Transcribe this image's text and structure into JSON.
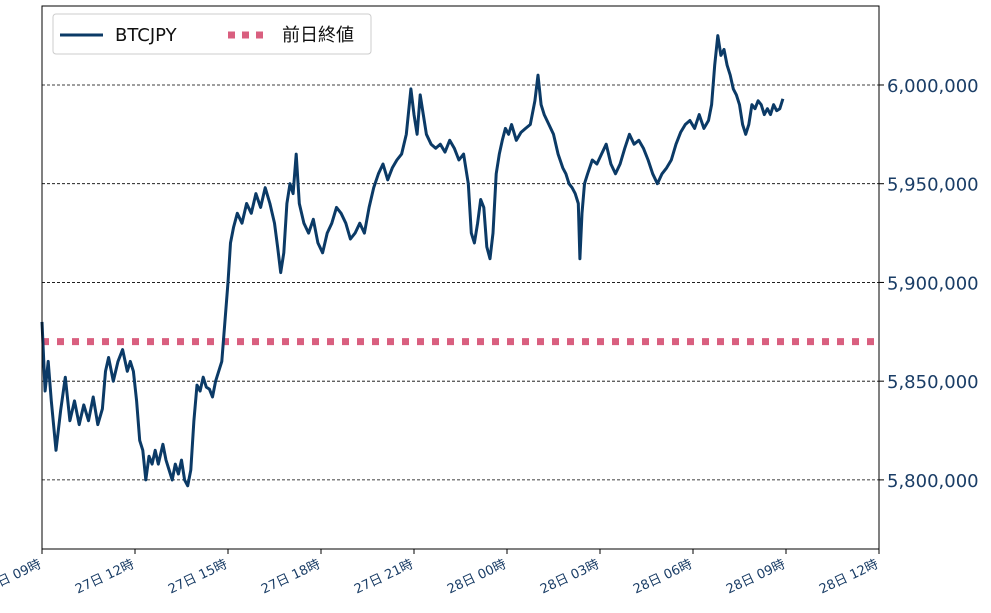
{
  "chart_data": {
    "type": "line",
    "title": "",
    "xlabel": "",
    "ylabel": "",
    "ylim": [
      5765000,
      6040000
    ],
    "grid": {
      "horizontal": true,
      "vertical": false,
      "style": "dashed"
    },
    "legend_position": "top-left",
    "x_hours_range": [
      0,
      27
    ],
    "x_ticks": [
      {
        "hour": 0,
        "label": "27日 09時"
      },
      {
        "hour": 3,
        "label": "27日 12時"
      },
      {
        "hour": 6,
        "label": "27日 15時"
      },
      {
        "hour": 9,
        "label": "27日 18時"
      },
      {
        "hour": 12,
        "label": "27日 21時"
      },
      {
        "hour": 15,
        "label": "28日 00時"
      },
      {
        "hour": 18,
        "label": "28日 03時"
      },
      {
        "hour": 21,
        "label": "28日 06時"
      },
      {
        "hour": 24,
        "label": "28日 09時"
      },
      {
        "hour": 27,
        "label": "28日 12時"
      }
    ],
    "y_ticks": [
      {
        "value": 5800000,
        "label": "5,800,000"
      },
      {
        "value": 5850000,
        "label": "5,850,000"
      },
      {
        "value": 5900000,
        "label": "5,900,000"
      },
      {
        "value": 5950000,
        "label": "5,950,000"
      },
      {
        "value": 6000000,
        "label": "6,000,000"
      }
    ],
    "series": [
      {
        "name": "BTCJPY",
        "color": "#0b3a66",
        "style": "solid",
        "points": [
          [
            0.0,
            5880000
          ],
          [
            0.1,
            5845000
          ],
          [
            0.2,
            5860000
          ],
          [
            0.3,
            5840000
          ],
          [
            0.45,
            5815000
          ],
          [
            0.6,
            5835000
          ],
          [
            0.75,
            5852000
          ],
          [
            0.9,
            5830000
          ],
          [
            1.05,
            5840000
          ],
          [
            1.2,
            5828000
          ],
          [
            1.35,
            5838000
          ],
          [
            1.5,
            5830000
          ],
          [
            1.65,
            5842000
          ],
          [
            1.8,
            5828000
          ],
          [
            1.95,
            5836000
          ],
          [
            2.05,
            5855000
          ],
          [
            2.15,
            5862000
          ],
          [
            2.3,
            5850000
          ],
          [
            2.45,
            5860000
          ],
          [
            2.6,
            5866000
          ],
          [
            2.75,
            5855000
          ],
          [
            2.85,
            5860000
          ],
          [
            2.95,
            5855000
          ],
          [
            3.05,
            5840000
          ],
          [
            3.15,
            5820000
          ],
          [
            3.25,
            5815000
          ],
          [
            3.35,
            5800000
          ],
          [
            3.45,
            5812000
          ],
          [
            3.55,
            5808000
          ],
          [
            3.65,
            5815000
          ],
          [
            3.75,
            5808000
          ],
          [
            3.9,
            5818000
          ],
          [
            4.0,
            5810000
          ],
          [
            4.1,
            5805000
          ],
          [
            4.2,
            5800000
          ],
          [
            4.3,
            5808000
          ],
          [
            4.4,
            5803000
          ],
          [
            4.5,
            5810000
          ],
          [
            4.6,
            5800000
          ],
          [
            4.7,
            5797000
          ],
          [
            4.8,
            5805000
          ],
          [
            4.9,
            5830000
          ],
          [
            5.0,
            5848000
          ],
          [
            5.1,
            5845000
          ],
          [
            5.2,
            5852000
          ],
          [
            5.3,
            5847000
          ],
          [
            5.4,
            5846000
          ],
          [
            5.5,
            5842000
          ],
          [
            5.6,
            5850000
          ],
          [
            5.7,
            5855000
          ],
          [
            5.8,
            5860000
          ],
          [
            5.9,
            5880000
          ],
          [
            6.0,
            5900000
          ],
          [
            6.08,
            5920000
          ],
          [
            6.18,
            5928000
          ],
          [
            6.3,
            5935000
          ],
          [
            6.45,
            5930000
          ],
          [
            6.6,
            5940000
          ],
          [
            6.75,
            5935000
          ],
          [
            6.9,
            5945000
          ],
          [
            7.05,
            5938000
          ],
          [
            7.2,
            5948000
          ],
          [
            7.35,
            5940000
          ],
          [
            7.5,
            5930000
          ],
          [
            7.6,
            5918000
          ],
          [
            7.7,
            5905000
          ],
          [
            7.8,
            5915000
          ],
          [
            7.9,
            5940000
          ],
          [
            8.0,
            5950000
          ],
          [
            8.1,
            5945000
          ],
          [
            8.2,
            5965000
          ],
          [
            8.3,
            5940000
          ],
          [
            8.45,
            5930000
          ],
          [
            8.6,
            5925000
          ],
          [
            8.75,
            5932000
          ],
          [
            8.9,
            5920000
          ],
          [
            9.05,
            5915000
          ],
          [
            9.2,
            5925000
          ],
          [
            9.35,
            5930000
          ],
          [
            9.5,
            5938000
          ],
          [
            9.65,
            5935000
          ],
          [
            9.8,
            5930000
          ],
          [
            9.95,
            5922000
          ],
          [
            10.1,
            5925000
          ],
          [
            10.25,
            5930000
          ],
          [
            10.4,
            5925000
          ],
          [
            10.55,
            5938000
          ],
          [
            10.7,
            5948000
          ],
          [
            10.85,
            5955000
          ],
          [
            11.0,
            5960000
          ],
          [
            11.15,
            5952000
          ],
          [
            11.3,
            5958000
          ],
          [
            11.45,
            5962000
          ],
          [
            11.6,
            5965000
          ],
          [
            11.75,
            5975000
          ],
          [
            11.9,
            5998000
          ],
          [
            12.0,
            5985000
          ],
          [
            12.1,
            5975000
          ],
          [
            12.2,
            5995000
          ],
          [
            12.3,
            5985000
          ],
          [
            12.4,
            5975000
          ],
          [
            12.55,
            5970000
          ],
          [
            12.7,
            5968000
          ],
          [
            12.85,
            5970000
          ],
          [
            13.0,
            5966000
          ],
          [
            13.15,
            5972000
          ],
          [
            13.3,
            5968000
          ],
          [
            13.45,
            5962000
          ],
          [
            13.6,
            5965000
          ],
          [
            13.75,
            5950000
          ],
          [
            13.85,
            5925000
          ],
          [
            13.95,
            5920000
          ],
          [
            14.05,
            5930000
          ],
          [
            14.15,
            5942000
          ],
          [
            14.25,
            5938000
          ],
          [
            14.35,
            5918000
          ],
          [
            14.45,
            5912000
          ],
          [
            14.55,
            5925000
          ],
          [
            14.65,
            5955000
          ],
          [
            14.75,
            5965000
          ],
          [
            14.85,
            5972000
          ],
          [
            14.95,
            5978000
          ],
          [
            15.05,
            5975000
          ],
          [
            15.15,
            5980000
          ],
          [
            15.3,
            5972000
          ],
          [
            15.45,
            5976000
          ],
          [
            15.6,
            5978000
          ],
          [
            15.75,
            5980000
          ],
          [
            15.9,
            5992000
          ],
          [
            16.0,
            6005000
          ],
          [
            16.1,
            5990000
          ],
          [
            16.2,
            5985000
          ],
          [
            16.35,
            5980000
          ],
          [
            16.5,
            5975000
          ],
          [
            16.65,
            5965000
          ],
          [
            16.8,
            5958000
          ],
          [
            16.9,
            5955000
          ],
          [
            17.0,
            5950000
          ],
          [
            17.1,
            5948000
          ],
          [
            17.2,
            5945000
          ],
          [
            17.3,
            5940000
          ],
          [
            17.35,
            5912000
          ],
          [
            17.42,
            5935000
          ],
          [
            17.5,
            5950000
          ],
          [
            17.6,
            5955000
          ],
          [
            17.75,
            5962000
          ],
          [
            17.9,
            5960000
          ],
          [
            18.05,
            5965000
          ],
          [
            18.2,
            5970000
          ],
          [
            18.35,
            5960000
          ],
          [
            18.5,
            5955000
          ],
          [
            18.65,
            5960000
          ],
          [
            18.8,
            5968000
          ],
          [
            18.95,
            5975000
          ],
          [
            19.1,
            5970000
          ],
          [
            19.25,
            5972000
          ],
          [
            19.4,
            5968000
          ],
          [
            19.55,
            5962000
          ],
          [
            19.7,
            5955000
          ],
          [
            19.85,
            5950000
          ],
          [
            20.0,
            5955000
          ],
          [
            20.15,
            5958000
          ],
          [
            20.3,
            5962000
          ],
          [
            20.45,
            5970000
          ],
          [
            20.6,
            5976000
          ],
          [
            20.75,
            5980000
          ],
          [
            20.9,
            5982000
          ],
          [
            21.05,
            5978000
          ],
          [
            21.2,
            5985000
          ],
          [
            21.35,
            5978000
          ],
          [
            21.5,
            5982000
          ],
          [
            21.6,
            5990000
          ],
          [
            21.7,
            6010000
          ],
          [
            21.8,
            6025000
          ],
          [
            21.9,
            6015000
          ],
          [
            22.0,
            6018000
          ],
          [
            22.1,
            6010000
          ],
          [
            22.2,
            6005000
          ],
          [
            22.3,
            5998000
          ],
          [
            22.4,
            5995000
          ],
          [
            22.5,
            5990000
          ],
          [
            22.6,
            5980000
          ],
          [
            22.7,
            5975000
          ],
          [
            22.8,
            5980000
          ],
          [
            22.9,
            5990000
          ],
          [
            23.0,
            5988000
          ],
          [
            23.1,
            5992000
          ],
          [
            23.2,
            5990000
          ],
          [
            23.3,
            5985000
          ],
          [
            23.4,
            5988000
          ],
          [
            23.5,
            5985000
          ],
          [
            23.6,
            5990000
          ],
          [
            23.7,
            5987000
          ],
          [
            23.8,
            5988000
          ],
          [
            23.9,
            5993000
          ]
        ]
      },
      {
        "name": "前日終値",
        "color": "#d95f7f",
        "style": "dotted",
        "constant": 5870000
      }
    ]
  }
}
